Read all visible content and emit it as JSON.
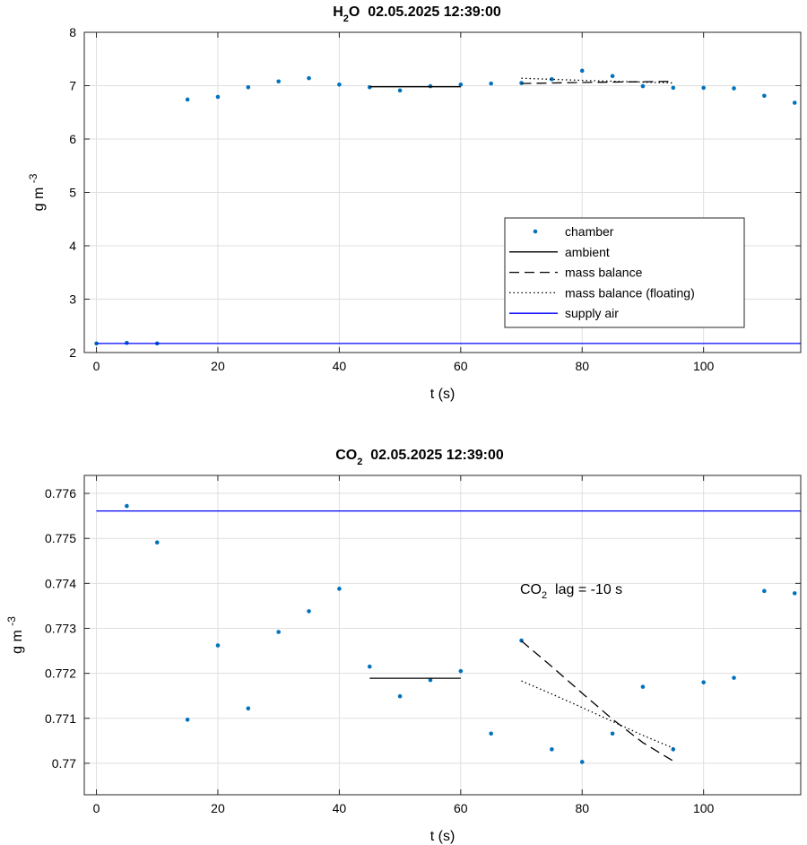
{
  "chart_data": [
    {
      "type": "scatter",
      "title": {
        "main": "H",
        "sub": "2",
        "rest": "O  02.05.2025 12:39:00"
      },
      "xlabel": "t (s)",
      "ylabel": {
        "main": "g m",
        "sup": "-3"
      },
      "xlim": [
        -2,
        116
      ],
      "ylim": [
        2,
        8
      ],
      "xticks": [
        "0",
        "20",
        "40",
        "60",
        "80",
        "100"
      ],
      "yticks": [
        "2",
        "3",
        "4",
        "5",
        "6",
        "7",
        "8"
      ],
      "grid": true,
      "legend_position": "center-right",
      "legend": [
        "chamber",
        "ambient",
        "mass balance",
        "mass balance (floating)",
        "supply air"
      ],
      "colors": {
        "chamber": "#0072bd",
        "supply": "#0000ff",
        "lines": "#000000"
      },
      "series": [
        {
          "name": "chamber",
          "style": "points",
          "x": [
            0,
            5,
            10,
            15,
            20,
            25,
            30,
            35,
            40,
            45,
            50,
            55,
            60,
            65,
            70,
            75,
            80,
            85,
            90,
            95,
            100,
            105,
            110,
            115
          ],
          "y": [
            2.17,
            2.18,
            2.17,
            6.74,
            6.79,
            6.97,
            7.08,
            7.14,
            7.02,
            6.97,
            6.91,
            6.99,
            7.02,
            7.04,
            7.05,
            7.12,
            7.28,
            7.18,
            6.99,
            6.96,
            6.96,
            6.95,
            6.81,
            6.68
          ]
        },
        {
          "name": "ambient",
          "style": "solid",
          "x": [
            45,
            60
          ],
          "y": [
            6.98,
            6.98
          ]
        },
        {
          "name": "mass balance",
          "style": "dashed",
          "x": [
            70,
            80,
            95
          ],
          "y": [
            7.04,
            7.06,
            7.08
          ]
        },
        {
          "name": "mass balance (floating)",
          "style": "dotted",
          "x": [
            70,
            80,
            95
          ],
          "y": [
            7.14,
            7.1,
            7.05
          ]
        },
        {
          "name": "supply air",
          "style": "solid-blue",
          "x": [
            0,
            116
          ],
          "y": [
            2.17,
            2.17
          ]
        }
      ]
    },
    {
      "type": "scatter",
      "title": {
        "main": "CO",
        "sub": "2",
        "rest": "  02.05.2025 12:39:00"
      },
      "xlabel": "t (s)",
      "ylabel": {
        "main": "g m",
        "sup": "-3"
      },
      "xlim": [
        -2,
        116
      ],
      "ylim": [
        0.7693,
        0.7764
      ],
      "xticks": [
        "0",
        "20",
        "40",
        "60",
        "80",
        "100"
      ],
      "yticks": [
        "0.77",
        "0.771",
        "0.772",
        "0.773",
        "0.774",
        "0.775",
        "0.776"
      ],
      "grid": true,
      "annotation": {
        "main": "CO",
        "sub": "2",
        "rest": "lag = -10 s"
      },
      "colors": {
        "chamber": "#0072bd",
        "supply": "#0000ff",
        "lines": "#000000"
      },
      "series": [
        {
          "name": "chamber",
          "style": "points",
          "x": [
            5,
            10,
            15,
            20,
            25,
            30,
            35,
            40,
            45,
            50,
            55,
            60,
            65,
            70,
            75,
            80,
            85,
            90,
            95,
            100,
            105,
            110,
            115
          ],
          "y": [
            0.77572,
            0.77491,
            0.77097,
            0.77262,
            0.77122,
            0.77292,
            0.77338,
            0.77388,
            0.77215,
            0.77149,
            0.77185,
            0.77205,
            0.77066,
            0.77273,
            0.77031,
            0.77003,
            0.77066,
            0.7717,
            0.77031,
            0.7718,
            0.7719,
            0.77383,
            0.77378
          ]
        },
        {
          "name": "ambient",
          "style": "solid",
          "x": [
            45,
            60
          ],
          "y": [
            0.77189,
            0.77189
          ]
        },
        {
          "name": "mass balance",
          "style": "dashed",
          "x": [
            70,
            75,
            80,
            85,
            90,
            95
          ],
          "y": [
            0.77272,
            0.77215,
            0.77156,
            0.77098,
            0.77046,
            0.77005
          ]
        },
        {
          "name": "mass balance (floating)",
          "style": "dotted",
          "x": [
            70,
            75,
            80,
            85,
            90,
            95
          ],
          "y": [
            0.77183,
            0.77154,
            0.77124,
            0.77093,
            0.77062,
            0.77034
          ]
        },
        {
          "name": "supply air",
          "style": "solid-blue",
          "x": [
            0,
            116
          ],
          "y": [
            0.77561,
            0.77561
          ]
        }
      ]
    }
  ]
}
